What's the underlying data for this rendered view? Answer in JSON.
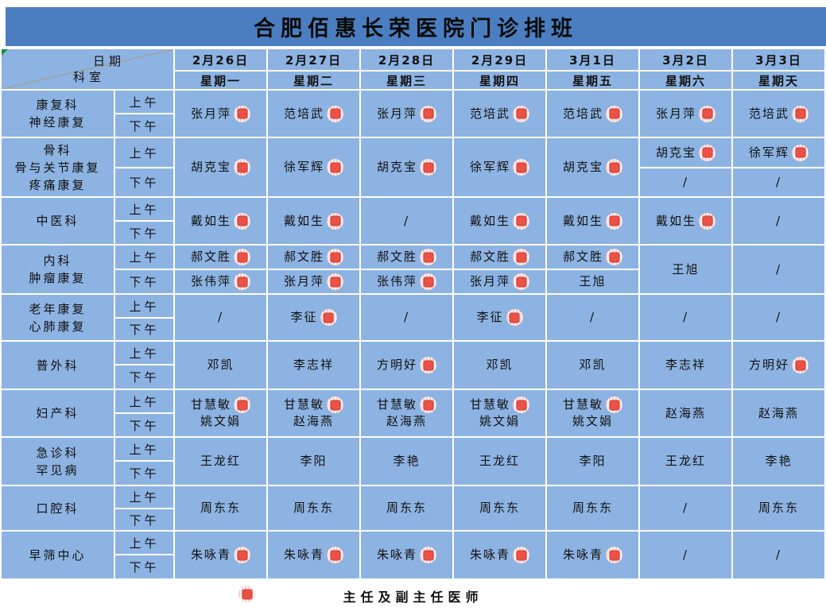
{
  "title": "合肥佰惠长荣医院门诊排班",
  "corner": {
    "date_label": "日期",
    "dept_label": "科室"
  },
  "periods": {
    "am": "上午",
    "pm": "下午"
  },
  "dates": [
    {
      "date": "2月26日",
      "weekday": "星期一"
    },
    {
      "date": "2月27日",
      "weekday": "星期二"
    },
    {
      "date": "2月28日",
      "weekday": "星期三"
    },
    {
      "date": "2月29日",
      "weekday": "星期四"
    },
    {
      "date": "3月1日",
      "weekday": "星期五"
    },
    {
      "date": "3月2日",
      "weekday": "星期六"
    },
    {
      "date": "3月3日",
      "weekday": "星期天"
    }
  ],
  "departments": [
    {
      "name_lines": [
        "康复科",
        "神经康复"
      ],
      "cells": [
        {
          "type": "full",
          "entries": [
            {
              "name": "张月萍",
              "badge": true
            }
          ]
        },
        {
          "type": "full",
          "entries": [
            {
              "name": "范培武",
              "badge": true
            }
          ]
        },
        {
          "type": "full",
          "entries": [
            {
              "name": "张月萍",
              "badge": true
            }
          ]
        },
        {
          "type": "full",
          "entries": [
            {
              "name": "范培武",
              "badge": true
            }
          ]
        },
        {
          "type": "full",
          "entries": [
            {
              "name": "范培武",
              "badge": true
            }
          ]
        },
        {
          "type": "full",
          "entries": [
            {
              "name": "张月萍",
              "badge": true
            }
          ]
        },
        {
          "type": "full",
          "entries": [
            {
              "name": "范培武",
              "badge": true
            }
          ]
        }
      ]
    },
    {
      "name_lines": [
        "骨科",
        "骨与关节康复",
        "疼痛康复"
      ],
      "cells": [
        {
          "type": "full",
          "entries": [
            {
              "name": "胡克宝",
              "badge": true
            }
          ]
        },
        {
          "type": "full",
          "entries": [
            {
              "name": "徐军辉",
              "badge": true
            }
          ]
        },
        {
          "type": "full",
          "entries": [
            {
              "name": "胡克宝",
              "badge": true
            }
          ]
        },
        {
          "type": "full",
          "entries": [
            {
              "name": "徐军辉",
              "badge": true
            }
          ]
        },
        {
          "type": "full",
          "entries": [
            {
              "name": "胡克宝",
              "badge": true
            }
          ]
        },
        {
          "type": "split",
          "am": [
            {
              "name": "胡克宝",
              "badge": true
            }
          ],
          "pm": [
            {
              "name": "/",
              "badge": false
            }
          ]
        },
        {
          "type": "split",
          "am": [
            {
              "name": "徐军辉",
              "badge": true
            }
          ],
          "pm": [
            {
              "name": "/",
              "badge": false
            }
          ]
        }
      ]
    },
    {
      "name_lines": [
        "中医科"
      ],
      "cells": [
        {
          "type": "full",
          "entries": [
            {
              "name": "戴如生",
              "badge": true
            }
          ]
        },
        {
          "type": "full",
          "entries": [
            {
              "name": "戴如生",
              "badge": true
            }
          ]
        },
        {
          "type": "full",
          "entries": [
            {
              "name": "/",
              "badge": false
            }
          ]
        },
        {
          "type": "full",
          "entries": [
            {
              "name": "戴如生",
              "badge": true
            }
          ]
        },
        {
          "type": "full",
          "entries": [
            {
              "name": "戴如生",
              "badge": true
            }
          ]
        },
        {
          "type": "full",
          "entries": [
            {
              "name": "戴如生",
              "badge": true
            }
          ]
        },
        {
          "type": "full",
          "entries": [
            {
              "name": "/",
              "badge": false
            }
          ]
        }
      ]
    },
    {
      "name_lines": [
        "内科",
        "肿瘤康复"
      ],
      "cells": [
        {
          "type": "split",
          "am": [
            {
              "name": "郝文胜",
              "badge": true
            }
          ],
          "pm": [
            {
              "name": "张伟萍",
              "badge": true
            }
          ]
        },
        {
          "type": "split",
          "am": [
            {
              "name": "郝文胜",
              "badge": true
            }
          ],
          "pm": [
            {
              "name": "张月萍",
              "badge": true
            }
          ]
        },
        {
          "type": "split",
          "am": [
            {
              "name": "郝文胜",
              "badge": true
            }
          ],
          "pm": [
            {
              "name": "张伟萍",
              "badge": true
            }
          ]
        },
        {
          "type": "split",
          "am": [
            {
              "name": "郝文胜",
              "badge": true
            }
          ],
          "pm": [
            {
              "name": "张月萍",
              "badge": true
            }
          ]
        },
        {
          "type": "split",
          "am": [
            {
              "name": "郝文胜",
              "badge": true
            }
          ],
          "pm": [
            {
              "name": "王旭",
              "badge": false
            }
          ]
        },
        {
          "type": "full",
          "entries": [
            {
              "name": "王旭",
              "badge": false
            }
          ]
        },
        {
          "type": "full",
          "entries": [
            {
              "name": "/",
              "badge": false
            }
          ]
        }
      ]
    },
    {
      "name_lines": [
        "老年康复",
        "心肺康复"
      ],
      "cells": [
        {
          "type": "full",
          "entries": [
            {
              "name": "/",
              "badge": false
            }
          ]
        },
        {
          "type": "full",
          "entries": [
            {
              "name": "李征",
              "badge": true
            }
          ]
        },
        {
          "type": "full",
          "entries": [
            {
              "name": "/",
              "badge": false
            }
          ]
        },
        {
          "type": "full",
          "entries": [
            {
              "name": "李征",
              "badge": true
            }
          ]
        },
        {
          "type": "full",
          "entries": [
            {
              "name": "/",
              "badge": false
            }
          ]
        },
        {
          "type": "full",
          "entries": [
            {
              "name": "/",
              "badge": false
            }
          ]
        },
        {
          "type": "full",
          "entries": [
            {
              "name": "/",
              "badge": false
            }
          ]
        }
      ]
    },
    {
      "name_lines": [
        "普外科"
      ],
      "cells": [
        {
          "type": "full",
          "entries": [
            {
              "name": "邓凯",
              "badge": false
            }
          ]
        },
        {
          "type": "full",
          "entries": [
            {
              "name": "李志祥",
              "badge": false
            }
          ]
        },
        {
          "type": "full",
          "entries": [
            {
              "name": "方明好",
              "badge": true
            }
          ]
        },
        {
          "type": "full",
          "entries": [
            {
              "name": "邓凯",
              "badge": false
            }
          ]
        },
        {
          "type": "full",
          "entries": [
            {
              "name": "邓凯",
              "badge": false
            }
          ]
        },
        {
          "type": "full",
          "entries": [
            {
              "name": "李志祥",
              "badge": false
            }
          ]
        },
        {
          "type": "full",
          "entries": [
            {
              "name": "方明好",
              "badge": true
            }
          ]
        }
      ]
    },
    {
      "name_lines": [
        "妇产科"
      ],
      "cells": [
        {
          "type": "full",
          "entries": [
            {
              "name": "甘慧敏",
              "badge": true
            },
            {
              "name": "姚文娟",
              "badge": false
            }
          ]
        },
        {
          "type": "full",
          "entries": [
            {
              "name": "甘慧敏",
              "badge": true
            },
            {
              "name": "赵海燕",
              "badge": false
            }
          ]
        },
        {
          "type": "full",
          "entries": [
            {
              "name": "甘慧敏",
              "badge": true
            },
            {
              "name": "赵海燕",
              "badge": false
            }
          ]
        },
        {
          "type": "full",
          "entries": [
            {
              "name": "甘慧敏",
              "badge": true
            },
            {
              "name": "姚文娟",
              "badge": false
            }
          ]
        },
        {
          "type": "full",
          "entries": [
            {
              "name": "甘慧敏",
              "badge": true
            },
            {
              "name": "姚文娟",
              "badge": false
            }
          ]
        },
        {
          "type": "full",
          "entries": [
            {
              "name": "赵海燕",
              "badge": false
            }
          ]
        },
        {
          "type": "full",
          "entries": [
            {
              "name": "赵海燕",
              "badge": false
            }
          ]
        }
      ]
    },
    {
      "name_lines": [
        "急诊科",
        "罕见病"
      ],
      "cells": [
        {
          "type": "full",
          "entries": [
            {
              "name": "王龙红",
              "badge": false
            }
          ]
        },
        {
          "type": "full",
          "entries": [
            {
              "name": "李阳",
              "badge": false
            }
          ]
        },
        {
          "type": "full",
          "entries": [
            {
              "name": "李艳",
              "badge": false
            }
          ]
        },
        {
          "type": "full",
          "entries": [
            {
              "name": "王龙红",
              "badge": false
            }
          ]
        },
        {
          "type": "full",
          "entries": [
            {
              "name": "李阳",
              "badge": false
            }
          ]
        },
        {
          "type": "full",
          "entries": [
            {
              "name": "王龙红",
              "badge": false
            }
          ]
        },
        {
          "type": "full",
          "entries": [
            {
              "name": "李艳",
              "badge": false
            }
          ]
        }
      ]
    },
    {
      "name_lines": [
        "口腔科"
      ],
      "cells": [
        {
          "type": "full",
          "entries": [
            {
              "name": "周东东",
              "badge": false
            }
          ]
        },
        {
          "type": "full",
          "entries": [
            {
              "name": "周东东",
              "badge": false
            }
          ]
        },
        {
          "type": "full",
          "entries": [
            {
              "name": "周东东",
              "badge": false
            }
          ]
        },
        {
          "type": "full",
          "entries": [
            {
              "name": "周东东",
              "badge": false
            }
          ]
        },
        {
          "type": "full",
          "entries": [
            {
              "name": "周东东",
              "badge": false
            }
          ]
        },
        {
          "type": "full",
          "entries": [
            {
              "name": "/",
              "badge": false
            }
          ]
        },
        {
          "type": "full",
          "entries": [
            {
              "name": "周东东",
              "badge": false
            }
          ]
        }
      ]
    },
    {
      "name_lines": [
        "早筛中心"
      ],
      "cells": [
        {
          "type": "full",
          "entries": [
            {
              "name": "朱咏青",
              "badge": true
            }
          ]
        },
        {
          "type": "full",
          "entries": [
            {
              "name": "朱咏青",
              "badge": true
            }
          ]
        },
        {
          "type": "full",
          "entries": [
            {
              "name": "朱咏青",
              "badge": true
            }
          ]
        },
        {
          "type": "full",
          "entries": [
            {
              "name": "朱咏青",
              "badge": true
            }
          ]
        },
        {
          "type": "full",
          "entries": [
            {
              "name": "朱咏青",
              "badge": true
            }
          ]
        },
        {
          "type": "full",
          "entries": [
            {
              "name": "/",
              "badge": false
            }
          ]
        },
        {
          "type": "full",
          "entries": [
            {
              "name": "/",
              "badge": false
            }
          ]
        }
      ]
    }
  ],
  "legend": {
    "badge_icon": "chief-physician-badge",
    "label": "主任及副主任医师"
  },
  "colors": {
    "banner_blue": "#4a7ec1",
    "cell_blue": "#8db3e2",
    "grid_white": "#ffffff",
    "badge_red": "#ea5147",
    "badge_stripe_pink": "#f6cdc9",
    "corner_triangle_green": "#0f9447"
  }
}
